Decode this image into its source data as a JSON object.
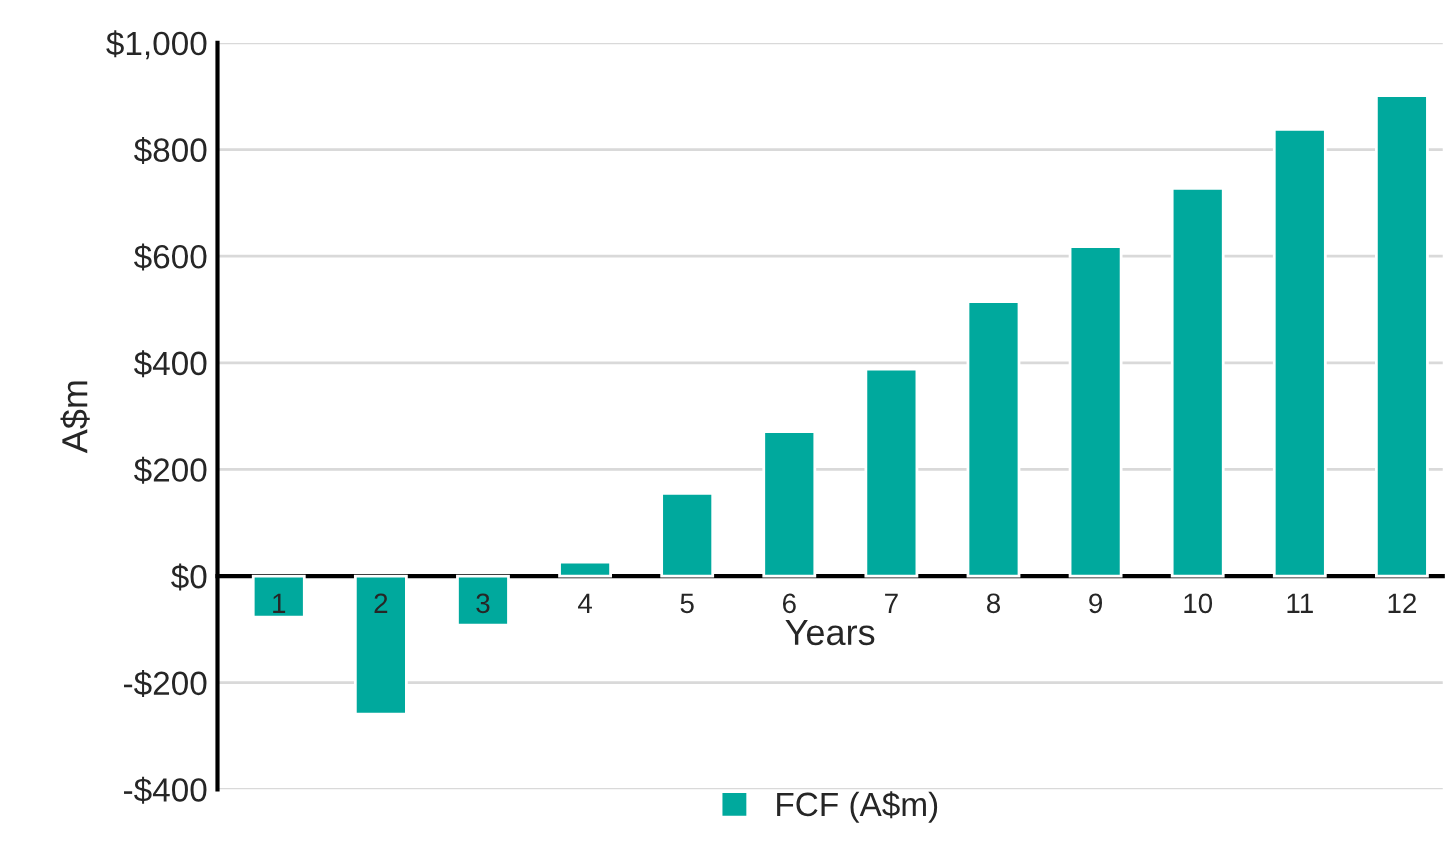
{
  "chart_data": {
    "type": "bar",
    "xlabel": "Years",
    "ylabel": "A$m",
    "categories": [
      "1",
      "2",
      "3",
      "4",
      "5",
      "6",
      "7",
      "8",
      "9",
      "10",
      "11",
      "12"
    ],
    "series": [
      {
        "name": "FCF (A$m)",
        "color": "#00a99d",
        "values": [
          -77,
          -259,
          -92,
          26,
          155,
          271,
          388,
          515,
          618,
          727,
          838,
          901
        ]
      }
    ],
    "ylim": [
      -400,
      1000
    ],
    "yticks": [
      {
        "value": -400,
        "label": "-$400"
      },
      {
        "value": -200,
        "label": "-$200"
      },
      {
        "value": 0,
        "label": "$0"
      },
      {
        "value": 200,
        "label": "$200"
      },
      {
        "value": 400,
        "label": "$400"
      },
      {
        "value": 600,
        "label": "$600"
      },
      {
        "value": 800,
        "label": "$800"
      },
      {
        "value": 1000,
        "label": "$1,000"
      }
    ],
    "grid": "y",
    "legend": "bottom"
  }
}
